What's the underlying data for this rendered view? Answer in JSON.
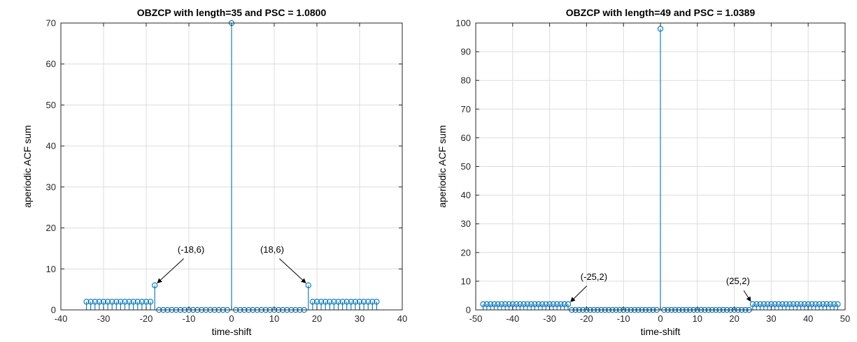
{
  "colors": {
    "stem": "#0072bd",
    "grid": "#dcdcdc",
    "axis": "#262626",
    "background": "#ffffff"
  },
  "chart_data": [
    {
      "type": "stem",
      "title": "OBZCP with length=35 and PSC = 1.0800",
      "xlabel": "time-shift",
      "ylabel": "aperiodic ACF sum",
      "xlim": [
        -40,
        40
      ],
      "ylim": [
        0,
        70
      ],
      "xticks": [
        -40,
        -30,
        -20,
        -10,
        0,
        10,
        20,
        30,
        40
      ],
      "yticks": [
        0,
        10,
        20,
        30,
        40,
        50,
        60,
        70
      ],
      "grid": true,
      "x": [
        -34,
        -33,
        -32,
        -31,
        -30,
        -29,
        -28,
        -27,
        -26,
        -25,
        -24,
        -23,
        -22,
        -21,
        -20,
        -19,
        -18,
        -17,
        -16,
        -15,
        -14,
        -13,
        -12,
        -11,
        -10,
        -9,
        -8,
        -7,
        -6,
        -5,
        -4,
        -3,
        -2,
        -1,
        0,
        1,
        2,
        3,
        4,
        5,
        6,
        7,
        8,
        9,
        10,
        11,
        12,
        13,
        14,
        15,
        16,
        17,
        18,
        19,
        20,
        21,
        22,
        23,
        24,
        25,
        26,
        27,
        28,
        29,
        30,
        31,
        32,
        33,
        34
      ],
      "y": [
        2,
        2,
        2,
        2,
        2,
        2,
        2,
        2,
        2,
        2,
        2,
        2,
        2,
        2,
        2,
        2,
        6,
        0,
        0,
        0,
        0,
        0,
        0,
        0,
        0,
        0,
        0,
        0,
        0,
        0,
        0,
        0,
        0,
        0,
        70,
        0,
        0,
        0,
        0,
        0,
        0,
        0,
        0,
        0,
        0,
        0,
        0,
        0,
        0,
        0,
        0,
        0,
        6,
        2,
        2,
        2,
        2,
        2,
        2,
        2,
        2,
        2,
        2,
        2,
        2,
        2,
        2,
        2,
        2
      ],
      "annotations": [
        {
          "text": "(-18,6)",
          "x": -18,
          "y": 6,
          "label_x": -9.5,
          "label_y": 14,
          "anchor": "middle"
        },
        {
          "text": "(18,6)",
          "x": 18,
          "y": 6,
          "label_x": 9.5,
          "label_y": 14,
          "anchor": "middle"
        }
      ]
    },
    {
      "type": "stem",
      "title": "OBZCP with length=49 and PSC = 1.0389",
      "xlabel": "time-shift",
      "ylabel": "aperiodic ACF sum",
      "xlim": [
        -50,
        50
      ],
      "ylim": [
        0,
        100
      ],
      "xticks": [
        -50,
        -40,
        -30,
        -20,
        -10,
        0,
        10,
        20,
        30,
        40,
        50
      ],
      "yticks": [
        0,
        10,
        20,
        30,
        40,
        50,
        60,
        70,
        80,
        90,
        100
      ],
      "grid": true,
      "x": [
        -48,
        -47,
        -46,
        -45,
        -44,
        -43,
        -42,
        -41,
        -40,
        -39,
        -38,
        -37,
        -36,
        -35,
        -34,
        -33,
        -32,
        -31,
        -30,
        -29,
        -28,
        -27,
        -26,
        -25,
        -24,
        -23,
        -22,
        -21,
        -20,
        -19,
        -18,
        -17,
        -16,
        -15,
        -14,
        -13,
        -12,
        -11,
        -10,
        -9,
        -8,
        -7,
        -6,
        -5,
        -4,
        -3,
        -2,
        -1,
        0,
        1,
        2,
        3,
        4,
        5,
        6,
        7,
        8,
        9,
        10,
        11,
        12,
        13,
        14,
        15,
        16,
        17,
        18,
        19,
        20,
        21,
        22,
        23,
        24,
        25,
        26,
        27,
        28,
        29,
        30,
        31,
        32,
        33,
        34,
        35,
        36,
        37,
        38,
        39,
        40,
        41,
        42,
        43,
        44,
        45,
        46,
        47,
        48
      ],
      "y": [
        2,
        2,
        2,
        2,
        2,
        2,
        2,
        2,
        2,
        2,
        2,
        2,
        2,
        2,
        2,
        2,
        2,
        2,
        2,
        2,
        2,
        2,
        2,
        2,
        0,
        0,
        0,
        0,
        0,
        0,
        0,
        0,
        0,
        0,
        0,
        0,
        0,
        0,
        0,
        0,
        0,
        0,
        0,
        0,
        0,
        0,
        0,
        0,
        98,
        0,
        0,
        0,
        0,
        0,
        0,
        0,
        0,
        0,
        0,
        0,
        0,
        0,
        0,
        0,
        0,
        0,
        0,
        0,
        0,
        0,
        0,
        0,
        0,
        2,
        2,
        2,
        2,
        2,
        2,
        2,
        2,
        2,
        2,
        2,
        2,
        2,
        2,
        2,
        2,
        2,
        2,
        2,
        2,
        2,
        2,
        2,
        2
      ],
      "annotations": [
        {
          "text": "(-25,2)",
          "x": -25,
          "y": 2,
          "label_x": -18,
          "label_y": 10.5,
          "anchor": "middle"
        },
        {
          "text": "(25,2)",
          "x": 25,
          "y": 2,
          "label_x": 21,
          "label_y": 9,
          "anchor": "middle"
        }
      ]
    }
  ]
}
